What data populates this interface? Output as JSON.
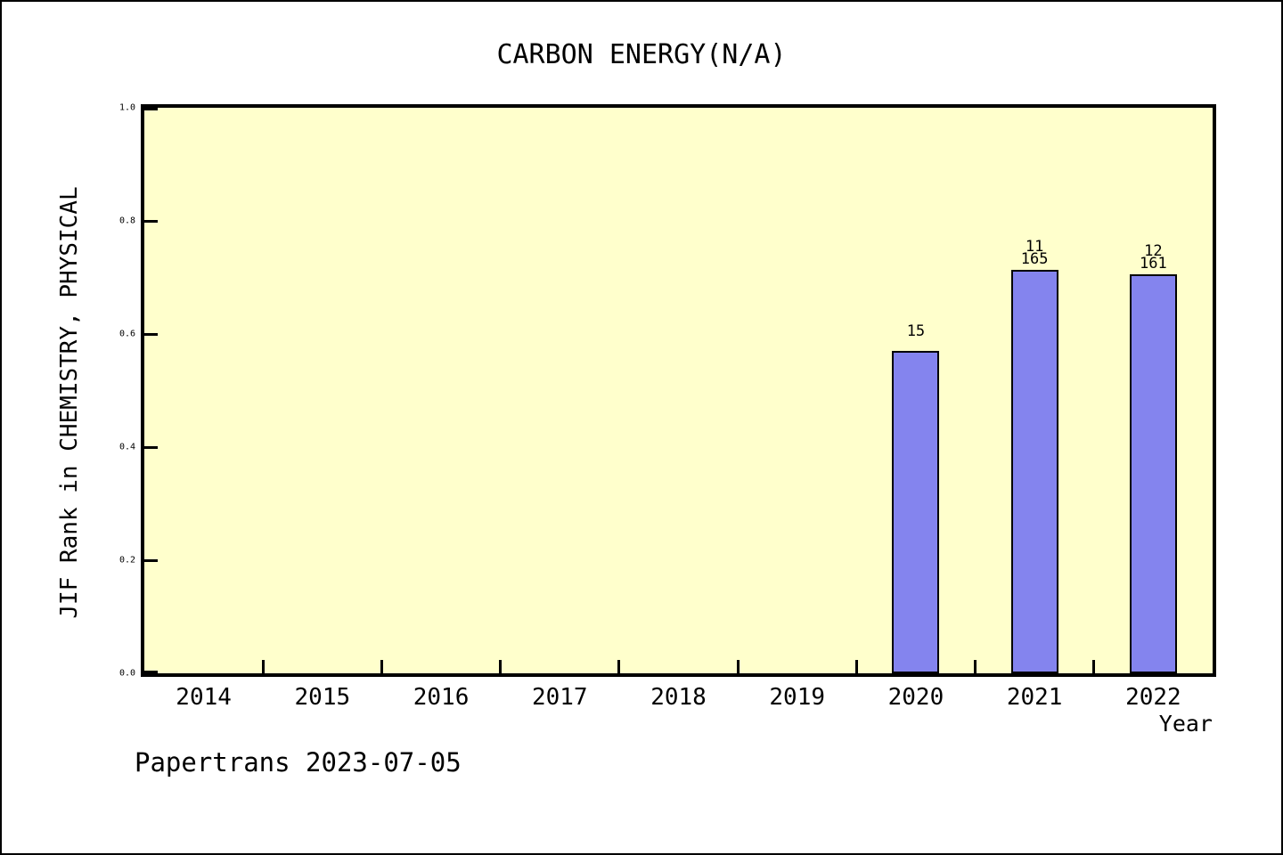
{
  "footer": "Papertrans 2023-07-05",
  "chart_data": {
    "type": "bar",
    "title": "CARBON ENERGY(N/A)",
    "xlabel": "Year",
    "ylabel": "JIF Rank in CHEMISTRY, PHYSICAL",
    "categories": [
      "2014",
      "2015",
      "2016",
      "2017",
      "2018",
      "2019",
      "2020",
      "2021",
      "2022"
    ],
    "values": [
      null,
      null,
      null,
      null,
      null,
      null,
      0.57,
      0.713,
      0.706
    ],
    "bar_labels": [
      null,
      null,
      null,
      null,
      null,
      null,
      "15",
      "11\n165",
      "12\n161"
    ],
    "ylim": [
      0.0,
      1.0
    ],
    "ytick_labels": [
      "1.0",
      "0.8",
      "0.6",
      "0.4",
      "0.2",
      "0.0"
    ],
    "grid": false,
    "legend": null,
    "colors": {
      "plot_background": "#ffffcc",
      "bar_fill": "#8484ee",
      "bar_border": "#000000",
      "axis": "#000000",
      "page_background": "#ffffff"
    }
  }
}
